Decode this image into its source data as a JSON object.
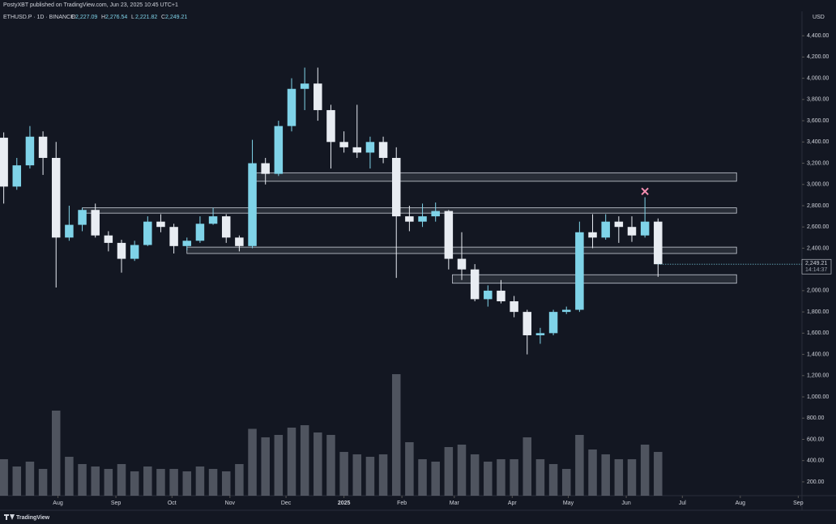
{
  "header": {
    "publisher": "PostyXBT published on TradingView.com, Jun 23, 2025 10:45 UTC+1",
    "symbol": "ETHUSD.P · 1D · BINANCE",
    "ohlc": [
      {
        "key": "O",
        "text": "2,227.09"
      },
      {
        "key": "H",
        "text": "2,276.54"
      },
      {
        "key": "L",
        "text": "2,221.82"
      },
      {
        "key": "C",
        "text": "2,249.21"
      }
    ]
  },
  "footer": {
    "logo": "TradingView"
  },
  "chart_data": {
    "type": "candlestick",
    "currency": "USD",
    "x": [
      2,
      9,
      16,
      23,
      30,
      37,
      44,
      51,
      58,
      65,
      72,
      79,
      86,
      93,
      100,
      107,
      114,
      121,
      128,
      135,
      142,
      149,
      156,
      163,
      170,
      177,
      184,
      191,
      198,
      205,
      212,
      219,
      226,
      233,
      240,
      247,
      254,
      261,
      268,
      275,
      282,
      289,
      296,
      303,
      310,
      317,
      324,
      331,
      338,
      345,
      352
    ],
    "open": [
      3440,
      2980,
      3180,
      3450,
      3250,
      2500,
      2620,
      2760,
      2520,
      2450,
      2300,
      2430,
      2650,
      2600,
      2420,
      2470,
      2630,
      2700,
      2500,
      2420,
      3200,
      3100,
      3550,
      3900,
      3950,
      3700,
      3400,
      3350,
      3300,
      3400,
      3250,
      2700,
      2650,
      2700,
      2750,
      2300,
      2200,
      1920,
      2000,
      1900,
      1800,
      1580,
      1600,
      1800,
      1820,
      2550,
      2500,
      2650,
      2600,
      2520,
      2650
    ],
    "high": [
      3490,
      3250,
      3550,
      3500,
      3400,
      2800,
      2780,
      2820,
      2560,
      2480,
      2470,
      2700,
      2720,
      2630,
      2500,
      2700,
      2780,
      2720,
      2520,
      3420,
      3250,
      3600,
      4000,
      4100,
      4100,
      3750,
      3500,
      3750,
      3450,
      3450,
      3350,
      2800,
      2820,
      2830,
      2760,
      2550,
      2250,
      2050,
      2100,
      1950,
      1820,
      1650,
      1820,
      1850,
      2650,
      2720,
      2720,
      2700,
      2700,
      2880,
      2680
    ],
    "low": [
      2820,
      2950,
      3150,
      3090,
      2030,
      2470,
      2560,
      2500,
      2370,
      2170,
      2280,
      2420,
      2550,
      2350,
      2380,
      2450,
      2620,
      2450,
      2370,
      2400,
      3000,
      3080,
      3500,
      3700,
      3600,
      3150,
      3300,
      3250,
      3150,
      3200,
      2120,
      2560,
      2600,
      2650,
      2200,
      2100,
      1900,
      1850,
      1880,
      1750,
      1400,
      1500,
      1580,
      1780,
      1800,
      2400,
      2480,
      2450,
      2460,
      2500,
      2130
    ],
    "close": [
      2980,
      3180,
      3450,
      3250,
      2500,
      2620,
      2760,
      2520,
      2450,
      2300,
      2430,
      2650,
      2600,
      2420,
      2470,
      2630,
      2700,
      2500,
      2420,
      3200,
      3100,
      3550,
      3900,
      3950,
      3700,
      3400,
      3350,
      3300,
      3400,
      3250,
      2700,
      2650,
      2700,
      2750,
      2300,
      2200,
      1920,
      2000,
      1900,
      1800,
      1580,
      1600,
      1800,
      1820,
      2550,
      2500,
      2650,
      2600,
      2520,
      2650,
      2249.21
    ],
    "volume": [
      30,
      24,
      28,
      22,
      70,
      32,
      26,
      24,
      22,
      26,
      20,
      24,
      22,
      22,
      20,
      24,
      22,
      20,
      26,
      55,
      48,
      50,
      56,
      58,
      52,
      50,
      36,
      34,
      32,
      34,
      100,
      44,
      30,
      28,
      40,
      42,
      34,
      28,
      30,
      30,
      48,
      30,
      26,
      22,
      50,
      38,
      34,
      30,
      30,
      42,
      36
    ],
    "volume_lim": [
      0,
      100
    ],
    "xlim": [
      0,
      429
    ],
    "ylim": [
      70,
      4630
    ],
    "xticks": [
      {
        "value": 31,
        "label": "Aug"
      },
      {
        "value": 62,
        "label": "Sep"
      },
      {
        "value": 92,
        "label": "Oct"
      },
      {
        "value": 123,
        "label": "Nov"
      },
      {
        "value": 153,
        "label": "Dec"
      },
      {
        "value": 184,
        "label": "2025"
      },
      {
        "value": 215,
        "label": "Feb"
      },
      {
        "value": 243,
        "label": "Mar"
      },
      {
        "value": 274,
        "label": "Apr"
      },
      {
        "value": 304,
        "label": "May"
      },
      {
        "value": 335,
        "label": "Jun"
      },
      {
        "value": 365,
        "label": "Jul"
      },
      {
        "value": 396,
        "label": "Aug"
      },
      {
        "value": 427,
        "label": "Sep"
      }
    ],
    "yticks": [
      {
        "value": 4400,
        "label": "4,400.00"
      },
      {
        "value": 4200,
        "label": "4,200.00"
      },
      {
        "value": 4000,
        "label": "4,000.00"
      },
      {
        "value": 3800,
        "label": "3,800.00"
      },
      {
        "value": 3600,
        "label": "3,600.00"
      },
      {
        "value": 3400,
        "label": "3,400.00"
      },
      {
        "value": 3200,
        "label": "3,200.00"
      },
      {
        "value": 3000,
        "label": "3,000.00"
      },
      {
        "value": 2800,
        "label": "2,800.00"
      },
      {
        "value": 2600,
        "label": "2,600.00"
      },
      {
        "value": 2400,
        "label": "2,400.00"
      },
      {
        "value": 2200,
        "label": "2,200.00"
      },
      {
        "value": 2000,
        "label": "2,000.00"
      },
      {
        "value": 1800,
        "label": "1,800.00"
      },
      {
        "value": 1600,
        "label": "1,600.00"
      },
      {
        "value": 1400,
        "label": "1,400.00"
      },
      {
        "value": 1200,
        "label": "1,200.00"
      },
      {
        "value": 1000,
        "label": "1,000.00"
      },
      {
        "value": 800,
        "label": "800.00"
      },
      {
        "value": 600,
        "label": "600.00"
      },
      {
        "value": 400,
        "label": "400.00"
      },
      {
        "value": 200,
        "label": "200.00"
      }
    ],
    "last_price": {
      "value": 2249.21,
      "label": "2,249.21"
    },
    "countdown": "14:14:37",
    "zones": [
      {
        "start": 136,
        "end": 394,
        "low": 3030,
        "high": 3110
      },
      {
        "start": 44,
        "end": 394,
        "low": 2730,
        "high": 2780
      },
      {
        "start": 100,
        "end": 394,
        "low": 2350,
        "high": 2410
      },
      {
        "start": 242,
        "end": 394,
        "low": 2070,
        "high": 2150
      }
    ],
    "marker": {
      "x": 345,
      "y": 2935,
      "color": "#f48fb1"
    },
    "up_color": "#7fd3e8",
    "down_color": "#e8ecf2",
    "grid": false
  }
}
